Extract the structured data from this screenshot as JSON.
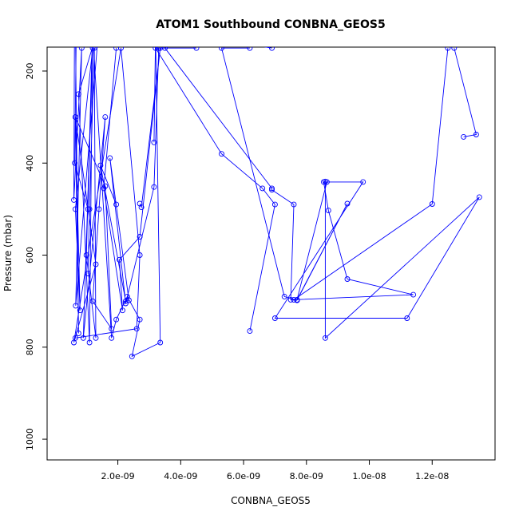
{
  "chart_data": {
    "type": "line",
    "title": "ATOM1 Southbound CONBNA_GEOS5",
    "xlabel": "CONBNA_GEOS5",
    "ylabel": "Pressure (mbar)",
    "x_ticks": [
      "2.0e-09",
      "4.0e-09",
      "6.0e-09",
      "8.0e-09",
      "1.0e-08",
      "1.2e-08"
    ],
    "x_tick_values": [
      2e-09,
      4e-09,
      6e-09,
      8e-09,
      1e-08,
      1.2e-08
    ],
    "y_ticks": [
      "200",
      "400",
      "600",
      "800",
      "1000"
    ],
    "y_tick_values": [
      200,
      400,
      600,
      800,
      1000
    ],
    "xlim": [
      -2.5e-10,
      1.4e-08
    ],
    "ylim": [
      1045,
      148
    ],
    "y_reversed": true,
    "grid": false,
    "legend": "none",
    "series_color": "#0000ff",
    "series": [
      {
        "x": [
          6.5e-10,
          7.5e-10,
          6.5e-10,
          8e-10,
          6.5e-10,
          1.2e-09,
          9e-10,
          1.6e-09,
          1.4e-09,
          1.2e-09,
          1.8e-09,
          1.6e-09,
          6.5e-10,
          1.3e-09,
          6e-10,
          2.1e-09,
          2.7e-09,
          2.6e-09,
          6.5e-10
        ],
        "y": [
          100,
          770,
          300,
          720,
          500,
          150,
          780,
          300,
          500,
          700,
          760,
          450,
          300,
          620,
          790,
          150,
          600,
          760,
          780
        ]
      },
      {
        "x": [
          6.2e-10,
          6e-10,
          8.5e-10,
          6.6e-10,
          1.4e-09,
          7.5e-10,
          1.1e-09,
          1.2e-09,
          1e-09,
          1.3e-09,
          1.25e-09,
          1.1e-09,
          1.05e-09
        ],
        "y": [
          100,
          480,
          150,
          710,
          100,
          250,
          790,
          100,
          600,
          780,
          150,
          500,
          640
        ]
      },
      {
        "x": [
          6.8e-10,
          6.3e-10,
          1.05e-09,
          1.2e-09,
          1.8e-09,
          1.95e-09,
          2.3e-09,
          2.7e-09,
          2.45e-09,
          3.35e-09,
          3.2e-09,
          3.15e-09
        ],
        "y": [
          100,
          400,
          500,
          120,
          780,
          740,
          690,
          740,
          820,
          790,
          120,
          355
        ]
      },
      {
        "x": [
          1.95e-09,
          1.45e-09,
          2.25e-09,
          2.35e-09,
          1.75e-09,
          2.25e-09,
          3.15e-09,
          3.3e-09
        ],
        "y": [
          490,
          405,
          700,
          698,
          389,
          705,
          452,
          150
        ]
      },
      {
        "x": [
          1.95e-09,
          1.55e-09,
          2.15e-09,
          2.05e-09,
          2.7e-09,
          3.35e-09,
          2.75e-09,
          2.7e-09
        ],
        "y": [
          150,
          455,
          720,
          610,
          560,
          150,
          496,
          488
        ]
      },
      {
        "x": [
          4.5e-09,
          3.2e-09,
          5.3e-09,
          6.6e-09,
          7e-09,
          6.2e-09
        ],
        "y": [
          150,
          150,
          380,
          455,
          490,
          765
        ]
      },
      {
        "x": [
          6.9e-09,
          4.2e-09,
          3.5e-09,
          6.9e-09,
          6.9e-09,
          7.6e-09,
          7.5e-09,
          7.7e-09,
          7.3e-09,
          5.3e-09,
          6.2e-09
        ],
        "y": [
          150,
          120,
          150,
          455,
          458,
          490,
          697,
          698,
          690,
          150,
          150
        ]
      },
      {
        "x": [
          7.7e-09,
          9.3e-09,
          7.7e-09,
          8.65e-09,
          9.8e-09,
          7e-09,
          1.12e-08,
          1.35e-08,
          8.6e-09,
          8.6e-09,
          8.55e-09,
          8.7e-09,
          9.3e-09,
          1.14e-08,
          7.6e-09,
          1.2e-08,
          1.25e-08
        ],
        "y": [
          698,
          488,
          697,
          441,
          441,
          737,
          737,
          474,
          780,
          440,
          441,
          503,
          652,
          686,
          697,
          489,
          150
        ]
      },
      {
        "x": [
          1.3e-08,
          1.34e-08,
          1.27e-08
        ],
        "y": [
          343,
          338,
          150
        ]
      }
    ]
  }
}
